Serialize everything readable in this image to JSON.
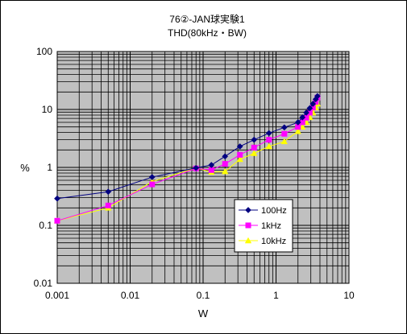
{
  "chart_data": {
    "type": "line",
    "title": "76②-JAN球実験1",
    "subtitle": "THD(80kHz・BW)",
    "xlabel": "W",
    "ylabel": "%",
    "x_scale": "log",
    "y_scale": "log",
    "xlim": [
      0.001,
      10
    ],
    "ylim": [
      0.01,
      100
    ],
    "x_tick_labels": [
      "0.001",
      "0.01",
      "0.1",
      "1",
      "10"
    ],
    "y_tick_labels": [
      "0.01",
      "0.1",
      "1",
      "10",
      "100"
    ],
    "grid": true,
    "plot_background": "#c0c0c0",
    "legend_position": "lower-right",
    "series": [
      {
        "name": "100Hz",
        "color": "#000080",
        "marker": "diamond",
        "points": [
          [
            0.001,
            0.29
          ],
          [
            0.005,
            0.38
          ],
          [
            0.02,
            0.68
          ],
          [
            0.08,
            0.98
          ],
          [
            0.13,
            1.1
          ],
          [
            0.2,
            1.55
          ],
          [
            0.32,
            2.3
          ],
          [
            0.5,
            3.0
          ],
          [
            0.8,
            3.9
          ],
          [
            1.3,
            4.9
          ],
          [
            2.0,
            6.0
          ],
          [
            2.3,
            7.3
          ],
          [
            2.6,
            8.8
          ],
          [
            2.9,
            10.5
          ],
          [
            3.2,
            12.5
          ],
          [
            3.5,
            15.0
          ],
          [
            3.7,
            17.0
          ]
        ]
      },
      {
        "name": "1kHz",
        "color": "#ff00ff",
        "marker": "square",
        "points": [
          [
            0.001,
            0.12
          ],
          [
            0.005,
            0.22
          ],
          [
            0.02,
            0.51
          ],
          [
            0.08,
            0.96
          ],
          [
            0.13,
            0.9
          ],
          [
            0.2,
            1.15
          ],
          [
            0.32,
            1.65
          ],
          [
            0.5,
            2.2
          ],
          [
            0.8,
            3.0
          ],
          [
            1.3,
            3.8
          ],
          [
            2.0,
            5.0
          ],
          [
            2.3,
            6.0
          ],
          [
            2.6,
            7.2
          ],
          [
            2.9,
            8.8
          ],
          [
            3.2,
            10.8
          ],
          [
            3.5,
            13.5
          ],
          [
            3.7,
            16.0
          ]
        ]
      },
      {
        "name": "10kHz",
        "color": "#ffff00",
        "marker": "triangle",
        "points": [
          [
            0.001,
            0.12
          ],
          [
            0.005,
            0.2
          ],
          [
            0.02,
            0.57
          ],
          [
            0.08,
            0.98
          ],
          [
            0.13,
            0.83
          ],
          [
            0.2,
            0.85
          ],
          [
            0.32,
            1.38
          ],
          [
            0.5,
            1.75
          ],
          [
            0.8,
            2.3
          ],
          [
            1.3,
            2.8
          ],
          [
            2.0,
            4.2
          ],
          [
            2.3,
            5.0
          ],
          [
            2.6,
            6.0
          ],
          [
            2.9,
            7.3
          ],
          [
            3.2,
            8.8
          ],
          [
            3.5,
            10.8
          ],
          [
            3.7,
            12.5
          ]
        ]
      }
    ]
  }
}
